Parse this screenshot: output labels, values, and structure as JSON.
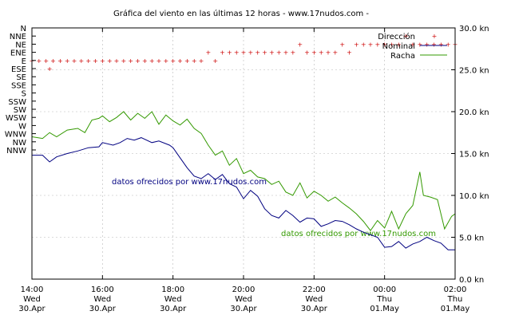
{
  "chart_data": {
    "type": "line",
    "title": "Gráfica del viento en las últimas 12 horas - www.17nudos.com -",
    "watermark": "datos ofrecidos por www.17nudos.com",
    "x_ticks": [
      {
        "time": "14:00",
        "day": "Wed",
        "date": "30.Apr"
      },
      {
        "time": "16:00",
        "day": "Wed",
        "date": "30.Apr"
      },
      {
        "time": "18:00",
        "day": "Wed",
        "date": "30.Apr"
      },
      {
        "time": "20:00",
        "day": "Wed",
        "date": "30.Apr"
      },
      {
        "time": "22:00",
        "day": "Wed",
        "date": "30.Apr"
      },
      {
        "time": "00:00",
        "day": "Thu",
        "date": "01.May"
      },
      {
        "time": "02:00",
        "day": "Thu",
        "date": "01.May"
      }
    ],
    "x_range_hours": [
      0,
      12
    ],
    "y2_range_kn": [
      0,
      30
    ],
    "y2_ticks": [
      "0.0 kn",
      "5.0 kn",
      "10.0 kn",
      "15.0 kn",
      "20.0 kn",
      "25.0 kn",
      "30.0 kn"
    ],
    "direction_labels": [
      "N",
      "NNE",
      "NE",
      "ENE",
      "E",
      "ESE",
      "SE",
      "SSE",
      "S",
      "SSW",
      "SW",
      "WSW",
      "W",
      "WNW",
      "NW",
      "NNW"
    ],
    "legend": {
      "placement": "top-right",
      "entries": [
        "Dirección",
        "Nominal",
        "Racha"
      ]
    },
    "colors": {
      "direction": "#cc0000",
      "nominal": "#000080",
      "racha": "#339900"
    },
    "series": [
      {
        "name": "Nominal",
        "unit": "kn",
        "points": [
          [
            0,
            14.8
          ],
          [
            0.3,
            14.8
          ],
          [
            0.5,
            14.0
          ],
          [
            0.7,
            14.6
          ],
          [
            1.0,
            15.0
          ],
          [
            1.3,
            15.3
          ],
          [
            1.6,
            15.7
          ],
          [
            1.9,
            15.8
          ],
          [
            2.0,
            16.3
          ],
          [
            2.3,
            16.0
          ],
          [
            2.5,
            16.3
          ],
          [
            2.7,
            16.8
          ],
          [
            2.9,
            16.6
          ],
          [
            3.1,
            16.9
          ],
          [
            3.4,
            16.3
          ],
          [
            3.6,
            16.5
          ],
          [
            3.9,
            16.0
          ],
          [
            4.0,
            15.7
          ],
          [
            4.2,
            14.5
          ],
          [
            4.4,
            13.3
          ],
          [
            4.6,
            12.3
          ],
          [
            4.8,
            12.0
          ],
          [
            5.0,
            12.6
          ],
          [
            5.2,
            11.9
          ],
          [
            5.4,
            12.5
          ],
          [
            5.6,
            11.4
          ],
          [
            5.8,
            11.0
          ],
          [
            6.0,
            9.6
          ],
          [
            6.2,
            10.6
          ],
          [
            6.4,
            9.9
          ],
          [
            6.6,
            8.4
          ],
          [
            6.8,
            7.6
          ],
          [
            7.0,
            7.3
          ],
          [
            7.2,
            8.2
          ],
          [
            7.4,
            7.6
          ],
          [
            7.6,
            6.8
          ],
          [
            7.8,
            7.3
          ],
          [
            8.0,
            7.2
          ],
          [
            8.2,
            6.3
          ],
          [
            8.4,
            6.6
          ],
          [
            8.6,
            7.0
          ],
          [
            8.8,
            6.9
          ],
          [
            9.0,
            6.5
          ],
          [
            9.2,
            6.0
          ],
          [
            9.4,
            5.6
          ],
          [
            9.6,
            5.3
          ],
          [
            9.8,
            5.0
          ],
          [
            10.0,
            3.8
          ],
          [
            10.2,
            3.9
          ],
          [
            10.4,
            4.5
          ],
          [
            10.6,
            3.7
          ],
          [
            10.8,
            4.2
          ],
          [
            11.0,
            4.5
          ],
          [
            11.2,
            5.0
          ],
          [
            11.4,
            4.6
          ],
          [
            11.6,
            4.3
          ],
          [
            11.8,
            3.5
          ],
          [
            12.0,
            3.5
          ]
        ]
      },
      {
        "name": "Racha",
        "unit": "kn",
        "points": [
          [
            0,
            17.0
          ],
          [
            0.3,
            16.8
          ],
          [
            0.5,
            17.5
          ],
          [
            0.7,
            17.0
          ],
          [
            1.0,
            17.8
          ],
          [
            1.3,
            18.0
          ],
          [
            1.5,
            17.5
          ],
          [
            1.7,
            19.0
          ],
          [
            1.9,
            19.2
          ],
          [
            2.0,
            19.5
          ],
          [
            2.2,
            18.8
          ],
          [
            2.4,
            19.3
          ],
          [
            2.6,
            20.0
          ],
          [
            2.8,
            19.0
          ],
          [
            3.0,
            19.8
          ],
          [
            3.2,
            19.2
          ],
          [
            3.4,
            20.0
          ],
          [
            3.6,
            18.5
          ],
          [
            3.8,
            19.6
          ],
          [
            4.0,
            18.9
          ],
          [
            4.2,
            18.4
          ],
          [
            4.4,
            19.1
          ],
          [
            4.6,
            18.0
          ],
          [
            4.8,
            17.4
          ],
          [
            5.0,
            16.0
          ],
          [
            5.2,
            14.8
          ],
          [
            5.4,
            15.3
          ],
          [
            5.6,
            13.6
          ],
          [
            5.8,
            14.4
          ],
          [
            6.0,
            12.6
          ],
          [
            6.2,
            13.0
          ],
          [
            6.4,
            12.2
          ],
          [
            6.6,
            12.0
          ],
          [
            6.8,
            11.3
          ],
          [
            7.0,
            11.7
          ],
          [
            7.2,
            10.4
          ],
          [
            7.4,
            10.0
          ],
          [
            7.6,
            11.5
          ],
          [
            7.8,
            9.7
          ],
          [
            8.0,
            10.5
          ],
          [
            8.2,
            10.0
          ],
          [
            8.4,
            9.3
          ],
          [
            8.6,
            9.8
          ],
          [
            8.8,
            9.1
          ],
          [
            9.0,
            8.5
          ],
          [
            9.2,
            7.8
          ],
          [
            9.4,
            6.9
          ],
          [
            9.6,
            5.8
          ],
          [
            9.8,
            7.0
          ],
          [
            10.0,
            6.1
          ],
          [
            10.2,
            8.1
          ],
          [
            10.4,
            6.0
          ],
          [
            10.6,
            7.8
          ],
          [
            10.8,
            8.8
          ],
          [
            11.0,
            12.8
          ],
          [
            11.1,
            10.0
          ],
          [
            11.3,
            9.8
          ],
          [
            11.5,
            9.5
          ],
          [
            11.7,
            6.0
          ],
          [
            11.9,
            7.5
          ],
          [
            12.0,
            7.8
          ]
        ]
      },
      {
        "name": "Dirección",
        "unit": "direction",
        "points": [
          [
            0.0,
            "E"
          ],
          [
            0.2,
            "E"
          ],
          [
            0.4,
            "E"
          ],
          [
            0.5,
            "ESE"
          ],
          [
            0.6,
            "E"
          ],
          [
            0.8,
            "E"
          ],
          [
            1.0,
            "E"
          ],
          [
            1.2,
            "E"
          ],
          [
            1.4,
            "E"
          ],
          [
            1.6,
            "E"
          ],
          [
            1.8,
            "E"
          ],
          [
            2.0,
            "E"
          ],
          [
            2.2,
            "E"
          ],
          [
            2.4,
            "E"
          ],
          [
            2.6,
            "E"
          ],
          [
            2.8,
            "E"
          ],
          [
            3.0,
            "E"
          ],
          [
            3.2,
            "E"
          ],
          [
            3.4,
            "E"
          ],
          [
            3.6,
            "E"
          ],
          [
            3.8,
            "E"
          ],
          [
            4.0,
            "E"
          ],
          [
            4.2,
            "E"
          ],
          [
            4.4,
            "E"
          ],
          [
            4.6,
            "E"
          ],
          [
            4.8,
            "E"
          ],
          [
            5.0,
            "ENE"
          ],
          [
            5.2,
            "E"
          ],
          [
            5.4,
            "ENE"
          ],
          [
            5.6,
            "ENE"
          ],
          [
            5.8,
            "ENE"
          ],
          [
            6.0,
            "ENE"
          ],
          [
            6.2,
            "ENE"
          ],
          [
            6.4,
            "ENE"
          ],
          [
            6.6,
            "ENE"
          ],
          [
            6.8,
            "ENE"
          ],
          [
            7.0,
            "ENE"
          ],
          [
            7.2,
            "ENE"
          ],
          [
            7.4,
            "ENE"
          ],
          [
            7.6,
            "NE"
          ],
          [
            7.8,
            "ENE"
          ],
          [
            8.0,
            "ENE"
          ],
          [
            8.2,
            "ENE"
          ],
          [
            8.4,
            "ENE"
          ],
          [
            8.6,
            "ENE"
          ],
          [
            8.8,
            "NE"
          ],
          [
            9.0,
            "ENE"
          ],
          [
            9.2,
            "NE"
          ],
          [
            9.4,
            "NE"
          ],
          [
            9.6,
            "NE"
          ],
          [
            9.8,
            "NE"
          ],
          [
            10.0,
            "NE"
          ],
          [
            10.2,
            "NE"
          ],
          [
            10.4,
            "NE"
          ],
          [
            10.6,
            "NNE"
          ],
          [
            10.8,
            "NE"
          ],
          [
            11.0,
            "NE"
          ],
          [
            11.2,
            "NE"
          ],
          [
            11.4,
            "NE"
          ],
          [
            11.6,
            "NE"
          ],
          [
            11.8,
            "NE"
          ],
          [
            12.0,
            "NE"
          ]
        ]
      }
    ]
  }
}
